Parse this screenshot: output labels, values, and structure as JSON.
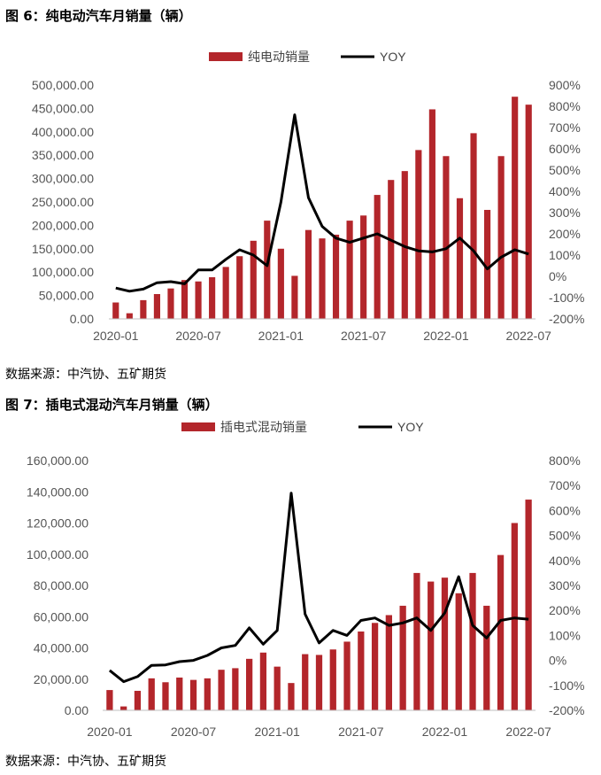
{
  "figures": [
    {
      "title": "图 6：纯电动汽车月销量（辆）",
      "source": "数据来源：中汽协、五矿期货",
      "chart_data": {
        "type": "bar",
        "legend": [
          "纯电动销量",
          "YOY"
        ],
        "legend_position": "top",
        "x_tick_labels": [
          "2020-01",
          "2020-07",
          "2021-01",
          "2021-07",
          "2022-01",
          "2022-07"
        ],
        "y_left_ticks": [
          "0.00",
          "50,000.00",
          "100,000.00",
          "150,000.00",
          "200,000.00",
          "250,000.00",
          "300,000.00",
          "350,000.00",
          "400,000.00",
          "450,000.00",
          "500,000.00"
        ],
        "y_right_ticks": [
          "-200%",
          "-100%",
          "0%",
          "100%",
          "200%",
          "300%",
          "400%",
          "500%",
          "600%",
          "700%",
          "800%",
          "900%"
        ],
        "ylim_left": [
          0,
          500000
        ],
        "ylim_right": [
          -200,
          900
        ],
        "bar_values": [
          35000,
          12000,
          40000,
          53000,
          65000,
          83000,
          80000,
          89000,
          111000,
          134000,
          167000,
          210000,
          150000,
          92000,
          190000,
          172000,
          180000,
          210000,
          221000,
          265000,
          297000,
          316000,
          361000,
          448000,
          348000,
          258000,
          397000,
          233000,
          348000,
          475000,
          458000
        ],
        "yoy_values": [
          -55,
          -70,
          -60,
          -30,
          -25,
          -35,
          30,
          30,
          80,
          125,
          100,
          50,
          350,
          760,
          370,
          235,
          180,
          160,
          180,
          200,
          170,
          140,
          120,
          115,
          130,
          180,
          120,
          35,
          90,
          125,
          105
        ],
        "grid": false
      }
    },
    {
      "title": "图 7：插电式混动汽车月销量（辆）",
      "source": "数据来源：中汽协、五矿期货",
      "chart_data": {
        "type": "bar",
        "legend": [
          "插电式混动销量",
          "YOY"
        ],
        "legend_position": "top",
        "x_tick_labels": [
          "2020-01",
          "2020-07",
          "2021-01",
          "2021-07",
          "2022-01",
          "2022-07"
        ],
        "y_left_ticks": [
          "0.00",
          "20,000.00",
          "40,000.00",
          "60,000.00",
          "80,000.00",
          "100,000.00",
          "120,000.00",
          "140,000.00",
          "160,000.00"
        ],
        "y_right_ticks": [
          "-200%",
          "-100%",
          "0%",
          "100%",
          "200%",
          "300%",
          "400%",
          "500%",
          "600%",
          "700%",
          "800%"
        ],
        "ylim_left": [
          0,
          160000
        ],
        "ylim_right": [
          -200,
          800
        ],
        "bar_values": [
          13000,
          2500,
          12500,
          20500,
          18000,
          21000,
          19500,
          20500,
          26000,
          27000,
          33000,
          37000,
          28000,
          17500,
          36000,
          35500,
          39000,
          44000,
          50500,
          56000,
          61000,
          67000,
          88000,
          82500,
          85000,
          75000,
          88000,
          67000,
          99500,
          120000,
          135000
        ],
        "yoy_values": [
          -40,
          -85,
          -65,
          -20,
          -18,
          -5,
          0,
          20,
          50,
          60,
          130,
          65,
          120,
          670,
          185,
          70,
          120,
          100,
          160,
          170,
          140,
          150,
          170,
          120,
          190,
          335,
          140,
          90,
          160,
          170,
          165
        ],
        "grid": false
      }
    }
  ],
  "colors": {
    "bar": "#b3262b",
    "line": "#000000",
    "axis": "#bfbfbf",
    "text": "#555555"
  }
}
